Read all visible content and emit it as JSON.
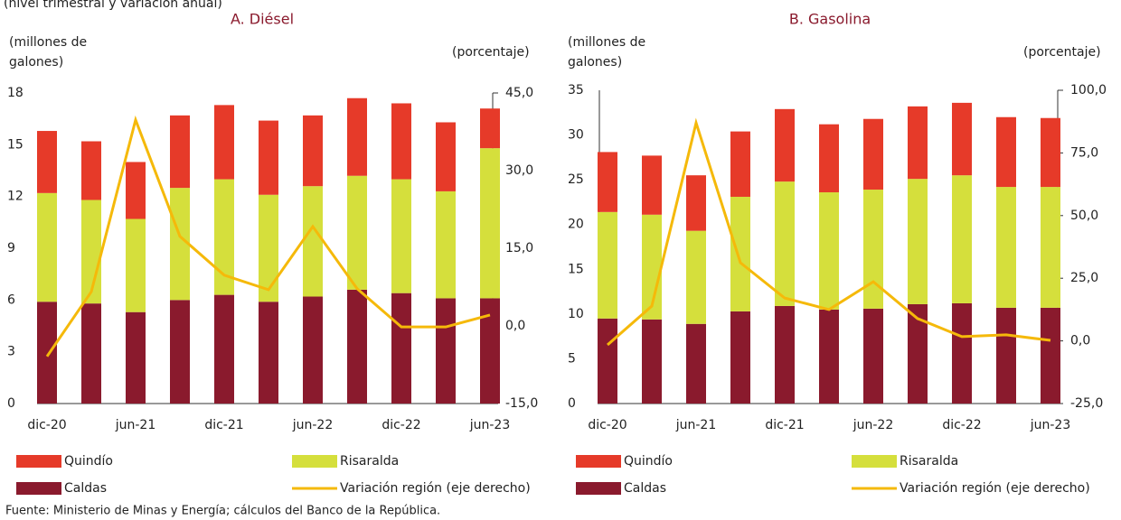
{
  "subtitle": "(nivel trimestral y variación anual)",
  "source": "Fuente: Ministerio de Minas y Energía; cálculos del Banco de la República.",
  "chart_data": [
    {
      "type": "bar",
      "stacked": true,
      "title": "A. Diésel",
      "y_label": "(millones de galones)",
      "y2_label": "(porcentaje)",
      "categories": [
        "dic-20",
        null,
        "jun-21",
        null,
        "dic-21",
        null,
        "jun-22",
        null,
        "dic-22",
        null,
        "jun-23"
      ],
      "series": [
        {
          "name": "Quindío",
          "color": "#e63a29",
          "values": [
            3.6,
            3.4,
            3.3,
            4.2,
            4.3,
            4.3,
            4.1,
            4.5,
            4.4,
            4.0,
            2.3
          ]
        },
        {
          "name": "Risaralda",
          "color": "#d5df3c",
          "values": [
            6.3,
            6.0,
            5.4,
            6.5,
            6.7,
            6.2,
            6.4,
            6.6,
            6.6,
            6.2,
            8.7
          ]
        },
        {
          "name": "Caldas",
          "color": "#8a1a2d",
          "values": [
            5.9,
            5.8,
            5.3,
            6.0,
            6.3,
            5.9,
            6.2,
            6.6,
            6.4,
            6.1,
            6.1
          ]
        },
        {
          "name": "Variación región (eje derecho)",
          "type": "line",
          "axis": "y2",
          "color": "#f5b90a",
          "values": [
            -5.9,
            6.6,
            39.8,
            17.3,
            9.8,
            7.0,
            19.2,
            7.2,
            -0.2,
            -0.2,
            2.1
          ]
        }
      ],
      "ylim": [
        0,
        18
      ],
      "yticks": [
        0,
        3,
        6,
        9,
        12,
        15,
        18
      ],
      "y2lim": [
        -15,
        45
      ],
      "y2ticks": [
        {
          "value": -15,
          "label": "-15,0"
        },
        {
          "value": 0,
          "label": "0,0"
        },
        {
          "value": 15,
          "label": "15,0"
        },
        {
          "value": 30,
          "label": "30,0"
        },
        {
          "value": 45,
          "label": "45,0"
        }
      ]
    },
    {
      "type": "bar",
      "stacked": true,
      "title": "B. Gasolina",
      "y_label": "(millones de galones)",
      "y2_label": "(porcentaje)",
      "categories": [
        "dic-20",
        null,
        "jun-21",
        null,
        "dic-21",
        null,
        "jun-22",
        null,
        "dic-22",
        null,
        "jun-23"
      ],
      "series": [
        {
          "name": "Quindío",
          "color": "#e63a29",
          "values": [
            6.7,
            6.6,
            6.2,
            7.3,
            8.1,
            7.6,
            7.9,
            8.1,
            8.1,
            7.8,
            7.7
          ]
        },
        {
          "name": "Risaralda",
          "color": "#d5df3c",
          "values": [
            11.9,
            11.7,
            10.4,
            12.8,
            13.9,
            13.1,
            13.3,
            14.0,
            14.3,
            13.5,
            13.5
          ]
        },
        {
          "name": "Caldas",
          "color": "#8a1a2d",
          "values": [
            9.5,
            9.4,
            8.9,
            10.3,
            10.9,
            10.5,
            10.6,
            11.1,
            11.2,
            10.7,
            10.7
          ]
        },
        {
          "name": "Variación región (eje derecho)",
          "type": "line",
          "axis": "y2",
          "color": "#f5b90a",
          "values": [
            -1.6,
            13.9,
            87.0,
            31.2,
            17.1,
            12.5,
            23.6,
            8.9,
            1.7,
            2.4,
            0.2
          ]
        }
      ],
      "ylim": [
        0,
        35
      ],
      "yticks": [
        0,
        5,
        10,
        15,
        20,
        25,
        30,
        35
      ],
      "y2lim": [
        -25,
        100
      ],
      "y2ticks": [
        {
          "value": -25,
          "label": "-25,0"
        },
        {
          "value": 0,
          "label": "0,0"
        },
        {
          "value": 25,
          "label": "25,0"
        },
        {
          "value": 50,
          "label": "50,0"
        },
        {
          "value": 75,
          "label": "75,0"
        },
        {
          "value": 100,
          "label": "100,0"
        }
      ]
    }
  ]
}
